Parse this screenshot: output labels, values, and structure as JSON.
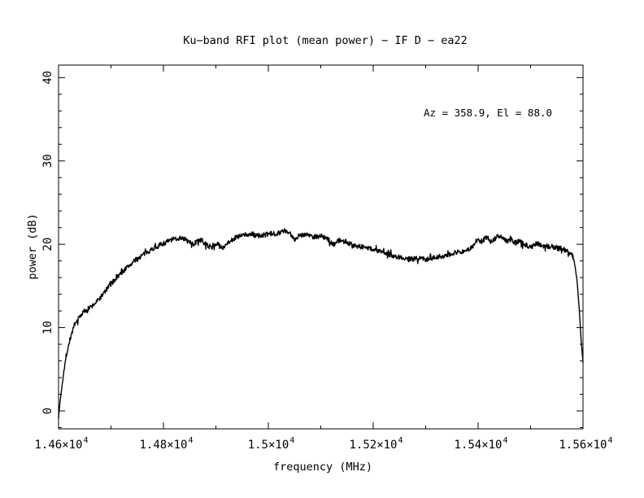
{
  "window": {
    "background": "#ffffff",
    "foreground": "#000000"
  },
  "chart_data": {
    "type": "line",
    "title": "Ku−band RFI plot (mean power) − IF D − ea22",
    "xlabel": "frequency (MHz)",
    "ylabel": "power (dB)",
    "xlim": [
      14600,
      15600
    ],
    "ylim": [
      -2.15,
      41.5
    ],
    "grid": false,
    "legend": "none",
    "frame_color": "#000000",
    "line_color": "#000000",
    "annotations": [
      {
        "text": "Az = 358.9, El = 88.0"
      }
    ],
    "x_tick_labels": [
      {
        "value": 14600,
        "main": "1.46×10",
        "sup": "4"
      },
      {
        "value": 14800,
        "main": "1.48×10",
        "sup": "4"
      },
      {
        "value": 15000,
        "main": "1.5×10",
        "sup": "4"
      },
      {
        "value": 15200,
        "main": "1.52×10",
        "sup": "4"
      },
      {
        "value": 15400,
        "main": "1.54×10",
        "sup": "4"
      },
      {
        "value": 15600,
        "main": "1.56×10",
        "sup": "4"
      }
    ],
    "x_minor_ticks": [
      14700,
      14900,
      15100,
      15300,
      15500
    ],
    "y_tick_labels": [
      {
        "value": 0,
        "label": "0"
      },
      {
        "value": 10,
        "label": "10"
      },
      {
        "value": 20,
        "label": "20"
      },
      {
        "value": 30,
        "label": "30"
      },
      {
        "value": 40,
        "label": "40"
      }
    ],
    "y_minor_ticks": [
      -2,
      2,
      4,
      6,
      8,
      12,
      14,
      16,
      18,
      22,
      24,
      26,
      28,
      32,
      34,
      36,
      38
    ],
    "series": [
      {
        "name": "mean power",
        "points": [
          [
            14600,
            -0.8
          ],
          [
            14603,
            1.2
          ],
          [
            14607,
            3.2
          ],
          [
            14611,
            5.2
          ],
          [
            14616,
            7.0
          ],
          [
            14621,
            8.4
          ],
          [
            14626,
            9.5
          ],
          [
            14632,
            10.4
          ],
          [
            14638,
            11.1
          ],
          [
            14645,
            11.7
          ],
          [
            14652,
            12.1
          ],
          [
            14660,
            12.4
          ],
          [
            14668,
            12.8
          ],
          [
            14677,
            13.4
          ],
          [
            14687,
            14.2
          ],
          [
            14697,
            15.0
          ],
          [
            14708,
            15.8
          ],
          [
            14720,
            16.6
          ],
          [
            14732,
            17.3
          ],
          [
            14745,
            18.0
          ],
          [
            14758,
            18.6
          ],
          [
            14772,
            19.2
          ],
          [
            14786,
            19.7
          ],
          [
            14800,
            20.1
          ],
          [
            14814,
            20.5
          ],
          [
            14826,
            20.7
          ],
          [
            14836,
            20.8
          ],
          [
            14845,
            20.4
          ],
          [
            14857,
            20.0
          ],
          [
            14868,
            20.5
          ],
          [
            14879,
            20.1
          ],
          [
            14891,
            19.6
          ],
          [
            14902,
            20.1
          ],
          [
            14912,
            19.5
          ],
          [
            14922,
            20.2
          ],
          [
            14938,
            20.8
          ],
          [
            14953,
            21.1
          ],
          [
            14969,
            21.2
          ],
          [
            14984,
            21.0
          ],
          [
            15000,
            21.2
          ],
          [
            15015,
            21.3
          ],
          [
            15031,
            21.6
          ],
          [
            15042,
            21.2
          ],
          [
            15050,
            20.6
          ],
          [
            15059,
            21.1
          ],
          [
            15074,
            21.2
          ],
          [
            15085,
            20.9
          ],
          [
            15101,
            21.0
          ],
          [
            15113,
            20.6
          ],
          [
            15124,
            20.0
          ],
          [
            15135,
            20.5
          ],
          [
            15147,
            20.3
          ],
          [
            15163,
            19.9
          ],
          [
            15178,
            19.7
          ],
          [
            15194,
            19.5
          ],
          [
            15209,
            19.2
          ],
          [
            15225,
            18.9
          ],
          [
            15240,
            18.6
          ],
          [
            15256,
            18.4
          ],
          [
            15271,
            18.2
          ],
          [
            15287,
            18.3
          ],
          [
            15302,
            18.2
          ],
          [
            15318,
            18.4
          ],
          [
            15333,
            18.6
          ],
          [
            15349,
            18.9
          ],
          [
            15364,
            19.1
          ],
          [
            15375,
            19.2
          ],
          [
            15384,
            19.4
          ],
          [
            15392,
            19.9
          ],
          [
            15398,
            20.6
          ],
          [
            15403,
            20.2
          ],
          [
            15410,
            20.5
          ],
          [
            15418,
            20.9
          ],
          [
            15424,
            20.3
          ],
          [
            15430,
            20.6
          ],
          [
            15440,
            21.0
          ],
          [
            15447,
            20.8
          ],
          [
            15455,
            20.3
          ],
          [
            15462,
            20.6
          ],
          [
            15470,
            20.2
          ],
          [
            15478,
            20.4
          ],
          [
            15487,
            20.0
          ],
          [
            15495,
            19.8
          ],
          [
            15503,
            19.7
          ],
          [
            15511,
            20.2
          ],
          [
            15520,
            19.8
          ],
          [
            15530,
            19.8
          ],
          [
            15542,
            19.7
          ],
          [
            15553,
            19.6
          ],
          [
            15563,
            19.4
          ],
          [
            15572,
            19.1
          ],
          [
            15579,
            18.8
          ],
          [
            15584,
            17.8
          ],
          [
            15589,
            15.4
          ],
          [
            15593,
            12.0
          ],
          [
            15597,
            8.0
          ],
          [
            15600,
            5.8
          ]
        ]
      }
    ]
  }
}
